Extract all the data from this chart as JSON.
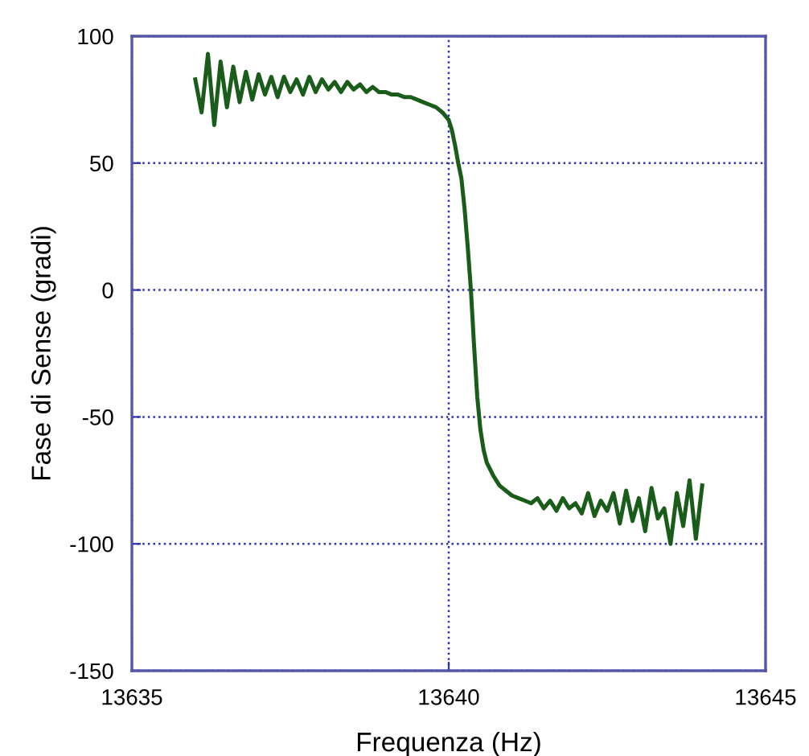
{
  "chart_data": {
    "type": "line",
    "xlabel": "Frequenza (Hz)",
    "ylabel": "Fase di Sense (gradi)",
    "xlim": [
      13635,
      13645
    ],
    "xticks": [
      13635,
      13640,
      13645
    ],
    "ylim": [
      -150,
      100
    ],
    "yticks": [
      -150,
      -100,
      -50,
      0,
      50,
      100
    ],
    "grid": true,
    "marker": "none",
    "line_style": "solid",
    "series": [
      {
        "color": "#1a5c1a",
        "x": [
          13636.0,
          13636.1,
          13636.2,
          13636.3,
          13636.4,
          13636.5,
          13636.6,
          13636.7,
          13636.8,
          13636.9,
          13637.0,
          13637.1,
          13637.2,
          13637.3,
          13637.4,
          13637.5,
          13637.6,
          13637.7,
          13637.8,
          13637.9,
          13638.0,
          13638.1,
          13638.2,
          13638.3,
          13638.4,
          13638.5,
          13638.6,
          13638.7,
          13638.8,
          13638.9,
          13639.0,
          13639.1,
          13639.2,
          13639.3,
          13639.4,
          13639.5,
          13639.6,
          13639.7,
          13639.8,
          13639.9,
          13640.0,
          13640.05,
          13640.1,
          13640.15,
          13640.2,
          13640.25,
          13640.3,
          13640.35,
          13640.4,
          13640.45,
          13640.5,
          13640.55,
          13640.6,
          13640.7,
          13640.8,
          13640.9,
          13641.0,
          13641.1,
          13641.2,
          13641.3,
          13641.4,
          13641.5,
          13641.6,
          13641.7,
          13641.8,
          13641.9,
          13642.0,
          13642.1,
          13642.2,
          13642.3,
          13642.4,
          13642.5,
          13642.6,
          13642.7,
          13642.8,
          13642.9,
          13643.0,
          13643.1,
          13643.2,
          13643.3,
          13643.4,
          13643.5,
          13643.6,
          13643.7,
          13643.8,
          13643.9,
          13644.0
        ],
        "values": [
          83,
          70,
          93,
          65,
          90,
          72,
          88,
          74,
          86,
          75,
          85,
          77,
          84,
          76,
          84,
          78,
          83,
          77,
          84,
          78,
          83,
          79,
          82,
          78,
          82,
          79,
          81,
          78,
          80,
          78,
          78,
          77,
          77,
          76,
          76,
          75,
          74,
          73,
          72,
          70,
          67,
          63,
          57,
          50,
          44,
          32,
          17,
          0,
          -22,
          -42,
          -55,
          -63,
          -68,
          -73,
          -77,
          -79,
          -81,
          -82,
          -83,
          -84,
          -82,
          -86,
          -83,
          -87,
          -82,
          -86,
          -84,
          -88,
          -80,
          -89,
          -83,
          -87,
          -80,
          -92,
          -79,
          -91,
          -82,
          -95,
          -78,
          -90,
          -86,
          -100,
          -80,
          -93,
          -75,
          -98,
          -77
        ]
      }
    ]
  }
}
